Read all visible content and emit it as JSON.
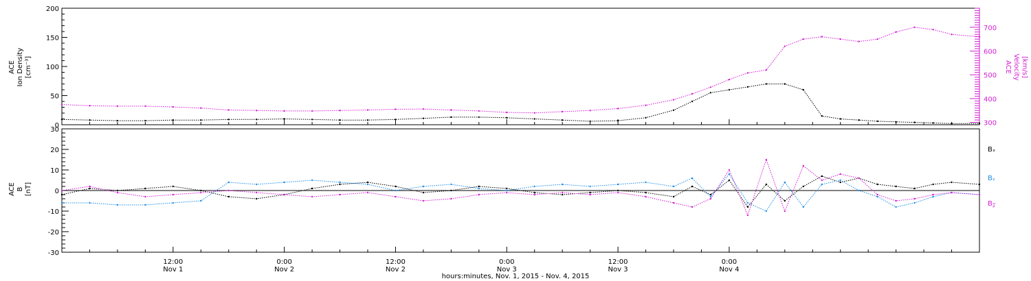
{
  "colors": {
    "black": "#000000",
    "magenta": "#d21dd2",
    "blue": "#1e8ce6"
  },
  "chart_data": [
    {
      "type": "scatter",
      "panel": "top",
      "ylabel_left_lines": [
        "ACE",
        "Ion Density",
        "[cm⁻³]"
      ],
      "ylabel_right_lines": [
        "ACE",
        "Velocity",
        "[km/s]"
      ],
      "xlim_hours": [
        0,
        99
      ],
      "ylim_left": [
        0,
        200
      ],
      "yticks_left": [
        0,
        50,
        100,
        150,
        200
      ],
      "ylim_right": [
        290,
        780
      ],
      "yticks_right": [
        300,
        400,
        500,
        600,
        700
      ],
      "series": [
        {
          "color_key": "black",
          "axis": "left",
          "points": [
            [
              0,
              9
            ],
            [
              3,
              8
            ],
            [
              6,
              7
            ],
            [
              9,
              7
            ],
            [
              12,
              8
            ],
            [
              15,
              8
            ],
            [
              18,
              9
            ],
            [
              21,
              9
            ],
            [
              24,
              10
            ],
            [
              27,
              9
            ],
            [
              30,
              8
            ],
            [
              33,
              8
            ],
            [
              36,
              9
            ],
            [
              39,
              11
            ],
            [
              42,
              13
            ],
            [
              45,
              13
            ],
            [
              48,
              12
            ],
            [
              51,
              10
            ],
            [
              54,
              8
            ],
            [
              57,
              6
            ],
            [
              60,
              7
            ],
            [
              63,
              12
            ],
            [
              66,
              25
            ],
            [
              68,
              40
            ],
            [
              70,
              55
            ],
            [
              72,
              60
            ],
            [
              74,
              65
            ],
            [
              76,
              70
            ],
            [
              78,
              70
            ],
            [
              80,
              60
            ],
            [
              82,
              15
            ],
            [
              84,
              10
            ],
            [
              86,
              8
            ],
            [
              88,
              6
            ],
            [
              90,
              5
            ],
            [
              92,
              4
            ],
            [
              94,
              3
            ],
            [
              96,
              2
            ],
            [
              99,
              2
            ]
          ]
        },
        {
          "color_key": "magenta",
          "axis": "right",
          "points": [
            [
              0,
              375
            ],
            [
              3,
              370
            ],
            [
              6,
              368
            ],
            [
              9,
              368
            ],
            [
              12,
              365
            ],
            [
              15,
              360
            ],
            [
              18,
              352
            ],
            [
              21,
              350
            ],
            [
              24,
              348
            ],
            [
              27,
              348
            ],
            [
              30,
              350
            ],
            [
              33,
              352
            ],
            [
              36,
              355
            ],
            [
              39,
              356
            ],
            [
              42,
              352
            ],
            [
              45,
              348
            ],
            [
              48,
              342
            ],
            [
              51,
              340
            ],
            [
              54,
              345
            ],
            [
              57,
              350
            ],
            [
              60,
              358
            ],
            [
              63,
              372
            ],
            [
              66,
              395
            ],
            [
              68,
              420
            ],
            [
              70,
              448
            ],
            [
              72,
              480
            ],
            [
              74,
              508
            ],
            [
              76,
              520
            ],
            [
              78,
              620
            ],
            [
              80,
              650
            ],
            [
              82,
              660
            ],
            [
              84,
              650
            ],
            [
              86,
              640
            ],
            [
              88,
              650
            ],
            [
              90,
              680
            ],
            [
              92,
              700
            ],
            [
              94,
              690
            ],
            [
              96,
              670
            ],
            [
              99,
              660
            ]
          ]
        }
      ]
    },
    {
      "type": "scatter",
      "panel": "bottom",
      "ylabel_lines": [
        "ACE",
        "B",
        "[nT]"
      ],
      "xlim_hours": [
        0,
        99
      ],
      "ylim": [
        -30,
        30
      ],
      "yticks": [
        -30,
        -20,
        -10,
        0,
        10,
        20,
        30
      ],
      "legend_placement": "right",
      "series": [
        {
          "name": "Bx",
          "color_key": "black",
          "points": [
            [
              0,
              -2
            ],
            [
              3,
              1
            ],
            [
              6,
              0
            ],
            [
              9,
              1
            ],
            [
              12,
              2
            ],
            [
              15,
              0
            ],
            [
              18,
              -3
            ],
            [
              21,
              -4
            ],
            [
              24,
              -2
            ],
            [
              27,
              1
            ],
            [
              30,
              3
            ],
            [
              33,
              4
            ],
            [
              36,
              2
            ],
            [
              39,
              -1
            ],
            [
              42,
              0
            ],
            [
              45,
              2
            ],
            [
              48,
              1
            ],
            [
              51,
              -1
            ],
            [
              54,
              -2
            ],
            [
              57,
              -1
            ],
            [
              60,
              0
            ],
            [
              63,
              -1
            ],
            [
              66,
              -3
            ],
            [
              68,
              2
            ],
            [
              70,
              -2
            ],
            [
              72,
              5
            ],
            [
              74,
              -8
            ],
            [
              76,
              3
            ],
            [
              78,
              -5
            ],
            [
              80,
              2
            ],
            [
              82,
              7
            ],
            [
              84,
              4
            ],
            [
              86,
              6
            ],
            [
              88,
              3
            ],
            [
              90,
              2
            ],
            [
              92,
              1
            ],
            [
              94,
              3
            ],
            [
              96,
              4
            ],
            [
              99,
              3
            ]
          ]
        },
        {
          "name": "By",
          "color_key": "blue",
          "points": [
            [
              0,
              -6
            ],
            [
              3,
              -6
            ],
            [
              6,
              -7
            ],
            [
              9,
              -7
            ],
            [
              12,
              -6
            ],
            [
              15,
              -5
            ],
            [
              18,
              4
            ],
            [
              21,
              3
            ],
            [
              24,
              4
            ],
            [
              27,
              5
            ],
            [
              30,
              4
            ],
            [
              33,
              3
            ],
            [
              36,
              0
            ],
            [
              39,
              2
            ],
            [
              42,
              3
            ],
            [
              45,
              1
            ],
            [
              48,
              0
            ],
            [
              51,
              2
            ],
            [
              54,
              3
            ],
            [
              57,
              2
            ],
            [
              60,
              3
            ],
            [
              63,
              4
            ],
            [
              66,
              2
            ],
            [
              68,
              6
            ],
            [
              70,
              -3
            ],
            [
              72,
              8
            ],
            [
              74,
              -6
            ],
            [
              76,
              -10
            ],
            [
              78,
              4
            ],
            [
              80,
              -8
            ],
            [
              82,
              3
            ],
            [
              84,
              5
            ],
            [
              86,
              0
            ],
            [
              88,
              -3
            ],
            [
              90,
              -8
            ],
            [
              92,
              -6
            ],
            [
              94,
              -3
            ],
            [
              96,
              -1
            ],
            [
              99,
              -2
            ]
          ]
        },
        {
          "name": "Bz",
          "color_key": "magenta",
          "points": [
            [
              0,
              0
            ],
            [
              3,
              2
            ],
            [
              6,
              -1
            ],
            [
              9,
              -3
            ],
            [
              12,
              -2
            ],
            [
              15,
              -1
            ],
            [
              18,
              0
            ],
            [
              21,
              -1
            ],
            [
              24,
              -2
            ],
            [
              27,
              -3
            ],
            [
              30,
              -2
            ],
            [
              33,
              -1
            ],
            [
              36,
              -3
            ],
            [
              39,
              -5
            ],
            [
              42,
              -4
            ],
            [
              45,
              -2
            ],
            [
              48,
              -1
            ],
            [
              51,
              -2
            ],
            [
              54,
              -1
            ],
            [
              57,
              -2
            ],
            [
              60,
              -1
            ],
            [
              63,
              -3
            ],
            [
              66,
              -6
            ],
            [
              68,
              -8
            ],
            [
              70,
              -4
            ],
            [
              72,
              10
            ],
            [
              74,
              -12
            ],
            [
              76,
              15
            ],
            [
              78,
              -10
            ],
            [
              80,
              12
            ],
            [
              82,
              5
            ],
            [
              84,
              8
            ],
            [
              86,
              6
            ],
            [
              88,
              -2
            ],
            [
              90,
              -5
            ],
            [
              92,
              -4
            ],
            [
              94,
              -2
            ],
            [
              96,
              -1
            ],
            [
              99,
              -2
            ]
          ]
        }
      ]
    }
  ],
  "legend": {
    "bx": "Bₓ",
    "by": "Bᵧ",
    "bz": "B𝓏"
  },
  "time_axis": {
    "major_ticks": [
      {
        "hour": 12,
        "line1": "12:00",
        "line2": "Nov 1"
      },
      {
        "hour": 24,
        "line1": "0:00",
        "line2": "Nov 2"
      },
      {
        "hour": 36,
        "line1": "12:00",
        "line2": "Nov 2"
      },
      {
        "hour": 48,
        "line1": "0:00",
        "line2": "Nov 3"
      },
      {
        "hour": 60,
        "line1": "12:00",
        "line2": "Nov 3"
      },
      {
        "hour": 72,
        "line1": "0:00",
        "line2": "Nov 4"
      }
    ],
    "xlabel": "hours:minutes, Nov.  1, 2015 - Nov.  4, 2015"
  }
}
